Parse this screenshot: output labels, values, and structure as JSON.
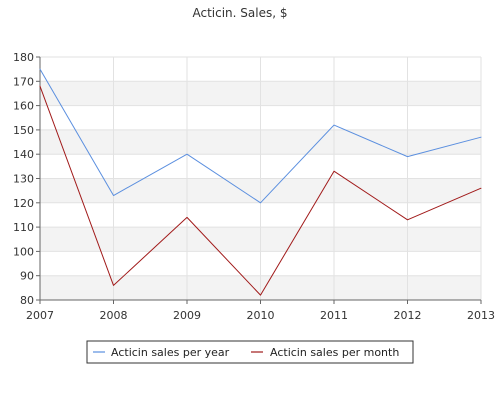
{
  "chart_data": {
    "type": "line",
    "title": "Acticin. Sales, $",
    "xlabel": "",
    "ylabel": "",
    "x": [
      "2007",
      "2008",
      "2009",
      "2010",
      "2011",
      "2012",
      "2013"
    ],
    "ylim": [
      80,
      180
    ],
    "yticks": [
      80,
      90,
      100,
      110,
      120,
      130,
      140,
      150,
      160,
      170,
      180
    ],
    "grid": true,
    "legend_position": "bottom-center",
    "series": [
      {
        "name": "Acticin sales per year",
        "color": "#5b8fdf",
        "values": [
          175,
          123,
          140,
          120,
          152,
          139,
          147
        ]
      },
      {
        "name": "Acticin sales per month",
        "color": "#a11a1a",
        "values": [
          168,
          86,
          114,
          82,
          133,
          113,
          126
        ]
      }
    ]
  }
}
